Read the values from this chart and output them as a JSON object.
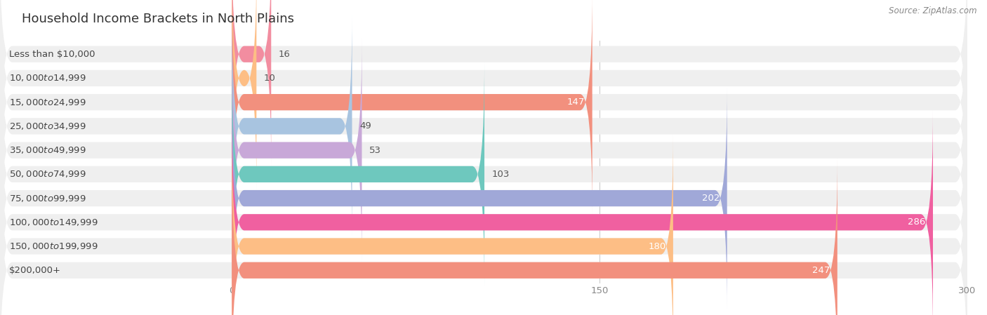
{
  "title": "Household Income Brackets in North Plains",
  "source": "Source: ZipAtlas.com",
  "categories": [
    "Less than $10,000",
    "$10,000 to $14,999",
    "$15,000 to $24,999",
    "$25,000 to $34,999",
    "$35,000 to $49,999",
    "$50,000 to $74,999",
    "$75,000 to $99,999",
    "$100,000 to $149,999",
    "$150,000 to $199,999",
    "$200,000+"
  ],
  "values": [
    16,
    10,
    147,
    49,
    53,
    103,
    202,
    286,
    180,
    247
  ],
  "colors": [
    "#F28DA0",
    "#FDBE85",
    "#F2907E",
    "#A8C4E0",
    "#C8A8D8",
    "#6EC8BE",
    "#A0A8D8",
    "#F060A0",
    "#FDBE85",
    "#F2907E"
  ],
  "value_inside_colors": [
    "#555555",
    "#555555",
    "#555555",
    "#555555",
    "#555555",
    "#555555",
    "#ffffff",
    "#ffffff",
    "#ffffff",
    "#ffffff"
  ],
  "xlim": [
    0,
    300
  ],
  "xticks": [
    0,
    150,
    300
  ],
  "background_color": "#ffffff",
  "bar_bg_color": "#efefef",
  "title_fontsize": 13,
  "label_fontsize": 9.5,
  "value_fontsize": 9.5,
  "value_threshold": 130
}
